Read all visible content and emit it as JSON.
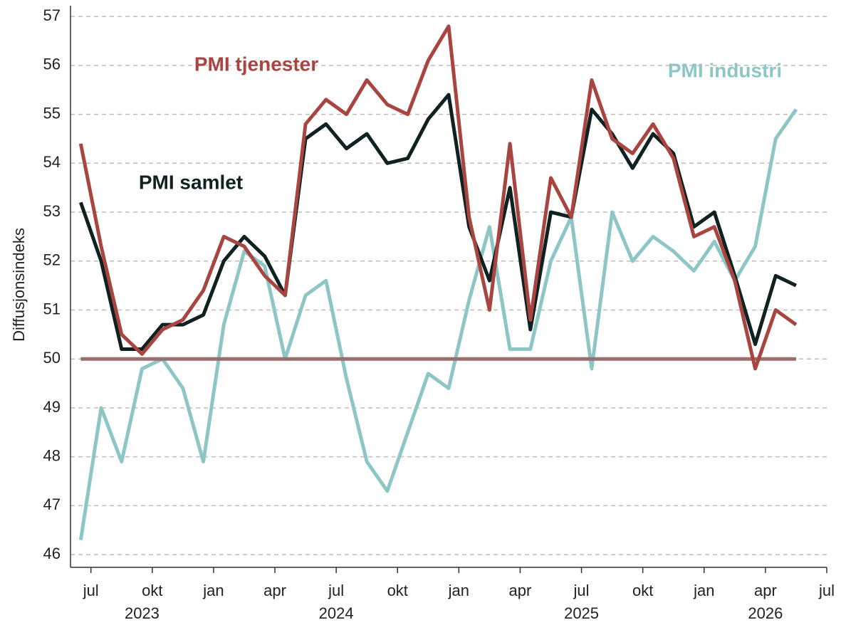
{
  "chart_data": {
    "type": "line",
    "y_label": "Diffusjonsindeks",
    "x": [
      "2023-06",
      "2023-07",
      "2023-08",
      "2023-09",
      "2023-10",
      "2023-11",
      "2023-12",
      "2024-01",
      "2024-02",
      "2024-03",
      "2024-04",
      "2024-05",
      "2024-06",
      "2024-07",
      "2024-08",
      "2024-09",
      "2024-10",
      "2024-11",
      "2024-12",
      "2025-01",
      "2025-02",
      "2025-03",
      "2025-04",
      "2025-05",
      "2025-06",
      "2025-07",
      "2025-08",
      "2025-09",
      "2025-10",
      "2025-11",
      "2025-12",
      "2026-01",
      "2026-02",
      "2026-03",
      "2026-04",
      "2026-05"
    ],
    "series": [
      {
        "name": "PMI industri",
        "color": "#8ec6c6",
        "values": [
          46.3,
          49.0,
          47.9,
          49.8,
          50.0,
          49.4,
          47.9,
          50.7,
          52.2,
          51.9,
          50.0,
          51.3,
          51.6,
          49.6,
          47.9,
          47.3,
          48.5,
          49.7,
          49.4,
          51.2,
          52.7,
          50.2,
          50.2,
          52.0,
          52.9,
          49.8,
          53.0,
          52.0,
          52.5,
          52.2,
          51.8,
          52.4,
          51.6,
          52.3,
          54.5,
          55.1
        ]
      },
      {
        "name": "PMI samlet",
        "color": "#0f2221",
        "values": [
          53.2,
          52.0,
          50.2,
          50.2,
          50.7,
          50.7,
          50.9,
          52.0,
          52.5,
          52.1,
          51.3,
          54.5,
          54.8,
          54.3,
          54.6,
          54.0,
          54.1,
          54.9,
          55.4,
          52.7,
          51.6,
          53.5,
          50.6,
          53.0,
          52.9,
          55.1,
          54.6,
          53.9,
          54.6,
          54.2,
          52.7,
          53.0,
          51.7,
          50.3,
          51.7,
          51.5
        ]
      },
      {
        "name": "PMI tjenester",
        "color": "#a84540",
        "values": [
          54.4,
          52.3,
          50.5,
          50.1,
          50.6,
          50.8,
          51.4,
          52.5,
          52.3,
          51.7,
          51.3,
          54.8,
          55.3,
          55.0,
          55.7,
          55.2,
          55.0,
          56.1,
          56.8,
          52.9,
          51.0,
          54.4,
          50.8,
          53.7,
          52.9,
          55.7,
          54.5,
          54.2,
          54.8,
          54.1,
          52.5,
          52.7,
          51.6,
          49.8,
          51.0,
          50.7
        ]
      }
    ],
    "reference_line": 50,
    "reference_color": "#9a6e6e",
    "xlim": [
      "2023-06",
      "2026-07"
    ],
    "xticks": [
      {
        "value": "2023-07",
        "label": "jul"
      },
      {
        "value": "2023-10",
        "label": "okt"
      },
      {
        "value": "2024-01",
        "label": "jan"
      },
      {
        "value": "2024-04",
        "label": "apr"
      },
      {
        "value": "2024-07",
        "label": "jul"
      },
      {
        "value": "2024-10",
        "label": "okt"
      },
      {
        "value": "2025-01",
        "label": "jan"
      },
      {
        "value": "2025-04",
        "label": "apr"
      },
      {
        "value": "2025-07",
        "label": "jul"
      },
      {
        "value": "2025-10",
        "label": "okt"
      },
      {
        "value": "2026-01",
        "label": "jan"
      },
      {
        "value": "2026-04",
        "label": "apr"
      },
      {
        "value": "2026-07",
        "label": "jul"
      }
    ],
    "years": [
      "2023",
      "2024",
      "2025",
      "2026"
    ],
    "ylim": [
      45.74,
      57.22
    ],
    "yticks": [
      46,
      47,
      48,
      49,
      50,
      51,
      52,
      53,
      54,
      55,
      56,
      57
    ],
    "grid": true
  }
}
